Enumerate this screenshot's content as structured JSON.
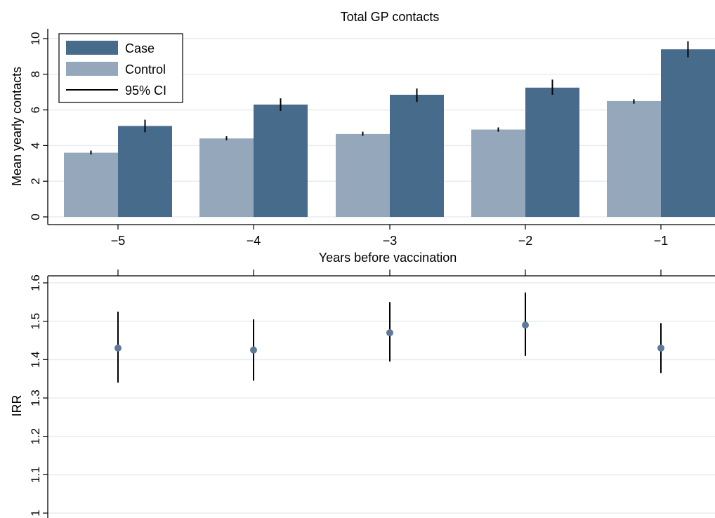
{
  "chart_data": [
    {
      "type": "bar",
      "title": "Total GP contacts",
      "xlabel": "Years before vaccination",
      "ylabel": "Mean yearly contacts",
      "categories": [
        "−5",
        "−4",
        "−3",
        "−2",
        "−1"
      ],
      "ylim": [
        0,
        10
      ],
      "yticks": [
        "0",
        "2",
        "4",
        "6",
        "8",
        "10"
      ],
      "grid": true,
      "legend_position": "top-left",
      "series": [
        {
          "name": "Control",
          "color": "#95a8bb",
          "values": [
            3.6,
            4.4,
            4.65,
            4.9,
            6.5
          ],
          "ci_low": [
            3.5,
            4.3,
            4.55,
            4.78,
            6.35
          ],
          "ci_high": [
            3.72,
            4.52,
            4.78,
            5.02,
            6.6
          ]
        },
        {
          "name": "Case",
          "color": "#476b8b",
          "values": [
            5.1,
            6.3,
            6.85,
            7.25,
            9.4
          ],
          "ci_low": [
            4.75,
            5.95,
            6.45,
            6.85,
            8.95
          ],
          "ci_high": [
            5.45,
            6.65,
            7.2,
            7.7,
            9.85
          ]
        }
      ],
      "legend": [
        {
          "label": "Case",
          "kind": "bar",
          "color": "#476b8b"
        },
        {
          "label": "Control",
          "kind": "bar",
          "color": "#95a8bb"
        },
        {
          "label": "95% CI",
          "kind": "line",
          "color": "#000000"
        }
      ]
    },
    {
      "type": "scatter",
      "title": "",
      "xlabel": "",
      "ylabel": "IRR",
      "x": [
        -5,
        -4,
        -3,
        -2,
        -1
      ],
      "ylim": [
        1.0,
        1.6
      ],
      "yticks": [
        "1",
        "1.1",
        "1.2",
        "1.3",
        "1.4",
        "1.5",
        "1.6"
      ],
      "grid": true,
      "marker_color": "#5f7a96",
      "values": [
        1.43,
        1.425,
        1.47,
        1.49,
        1.43
      ],
      "ci_low": [
        1.34,
        1.345,
        1.395,
        1.41,
        1.365
      ],
      "ci_high": [
        1.525,
        1.505,
        1.55,
        1.575,
        1.495
      ]
    }
  ]
}
